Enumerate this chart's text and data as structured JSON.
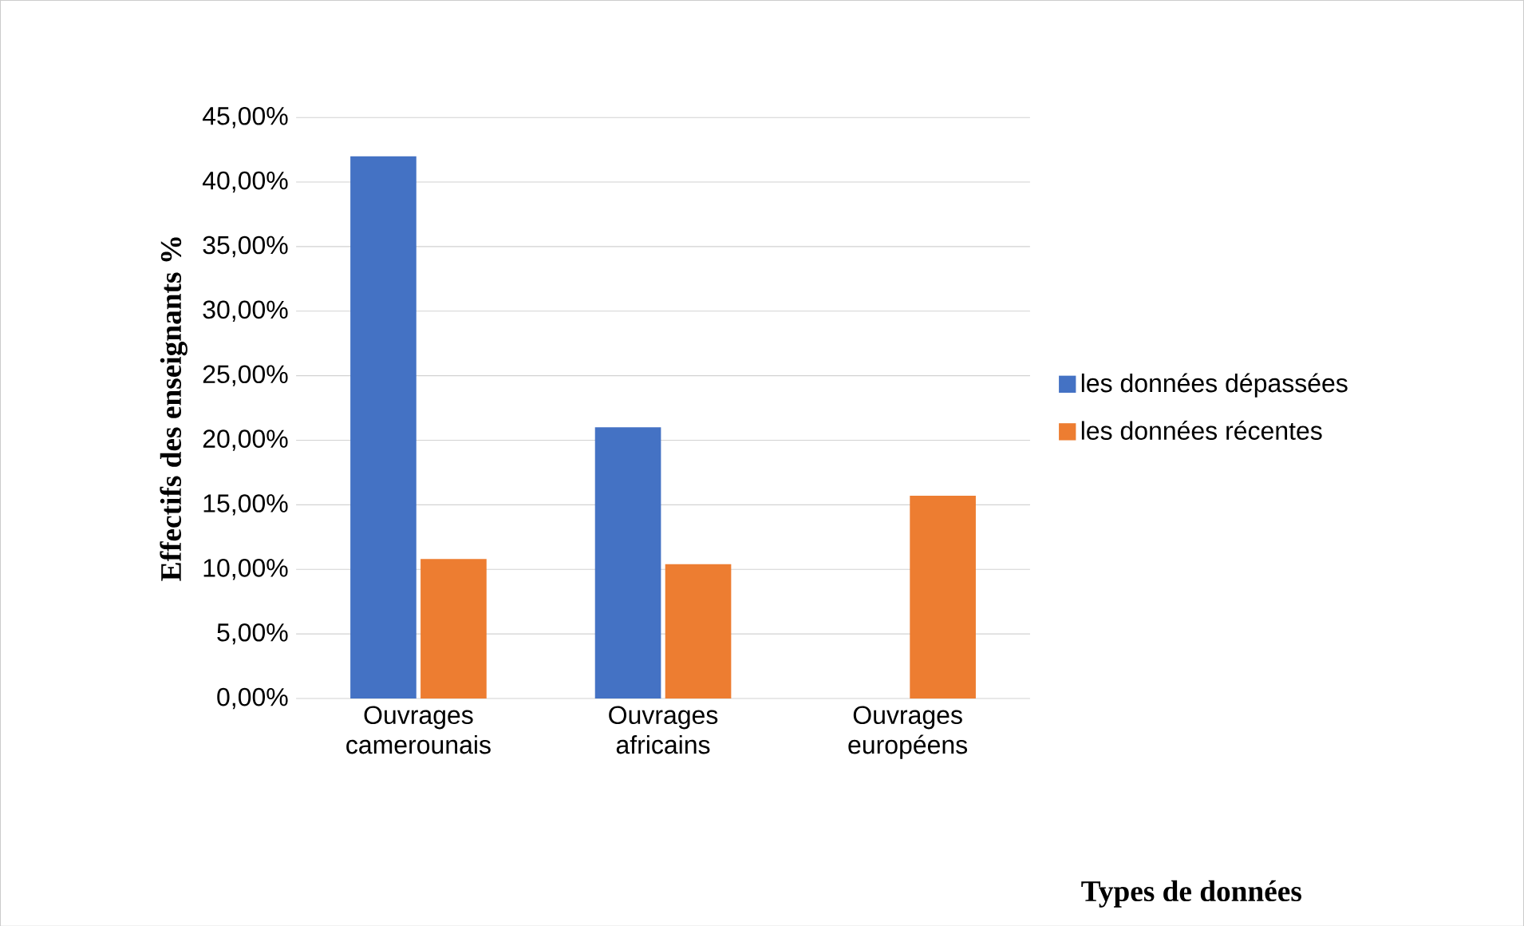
{
  "chart_data": {
    "type": "bar",
    "xlabel": "Types de données",
    "ylabel": "Effectifs des enseignants %",
    "categories": [
      "Ouvrages camerounais",
      "Ouvrages africains",
      "Ouvrages européens"
    ],
    "series": [
      {
        "name": "les données dépassées",
        "color": "#4472c4",
        "values": [
          42,
          21,
          0
        ]
      },
      {
        "name": "les données récentes",
        "color": "#ed7d31",
        "values": [
          10.8,
          10.4,
          15.7
        ]
      }
    ],
    "ylim": [
      0,
      45
    ],
    "yticks": [
      {
        "value": 0,
        "label": "0,00%"
      },
      {
        "value": 5,
        "label": "5,00%"
      },
      {
        "value": 10,
        "label": "10,00%"
      },
      {
        "value": 15,
        "label": "15,00%"
      },
      {
        "value": 20,
        "label": "20,00%"
      },
      {
        "value": 25,
        "label": "25,00%"
      },
      {
        "value": 30,
        "label": "30,00%"
      },
      {
        "value": 35,
        "label": "35,00%"
      },
      {
        "value": 40,
        "label": "40,00%"
      },
      {
        "value": 45,
        "label": "45,00%"
      }
    ],
    "grid": "y",
    "legend": "right"
  }
}
